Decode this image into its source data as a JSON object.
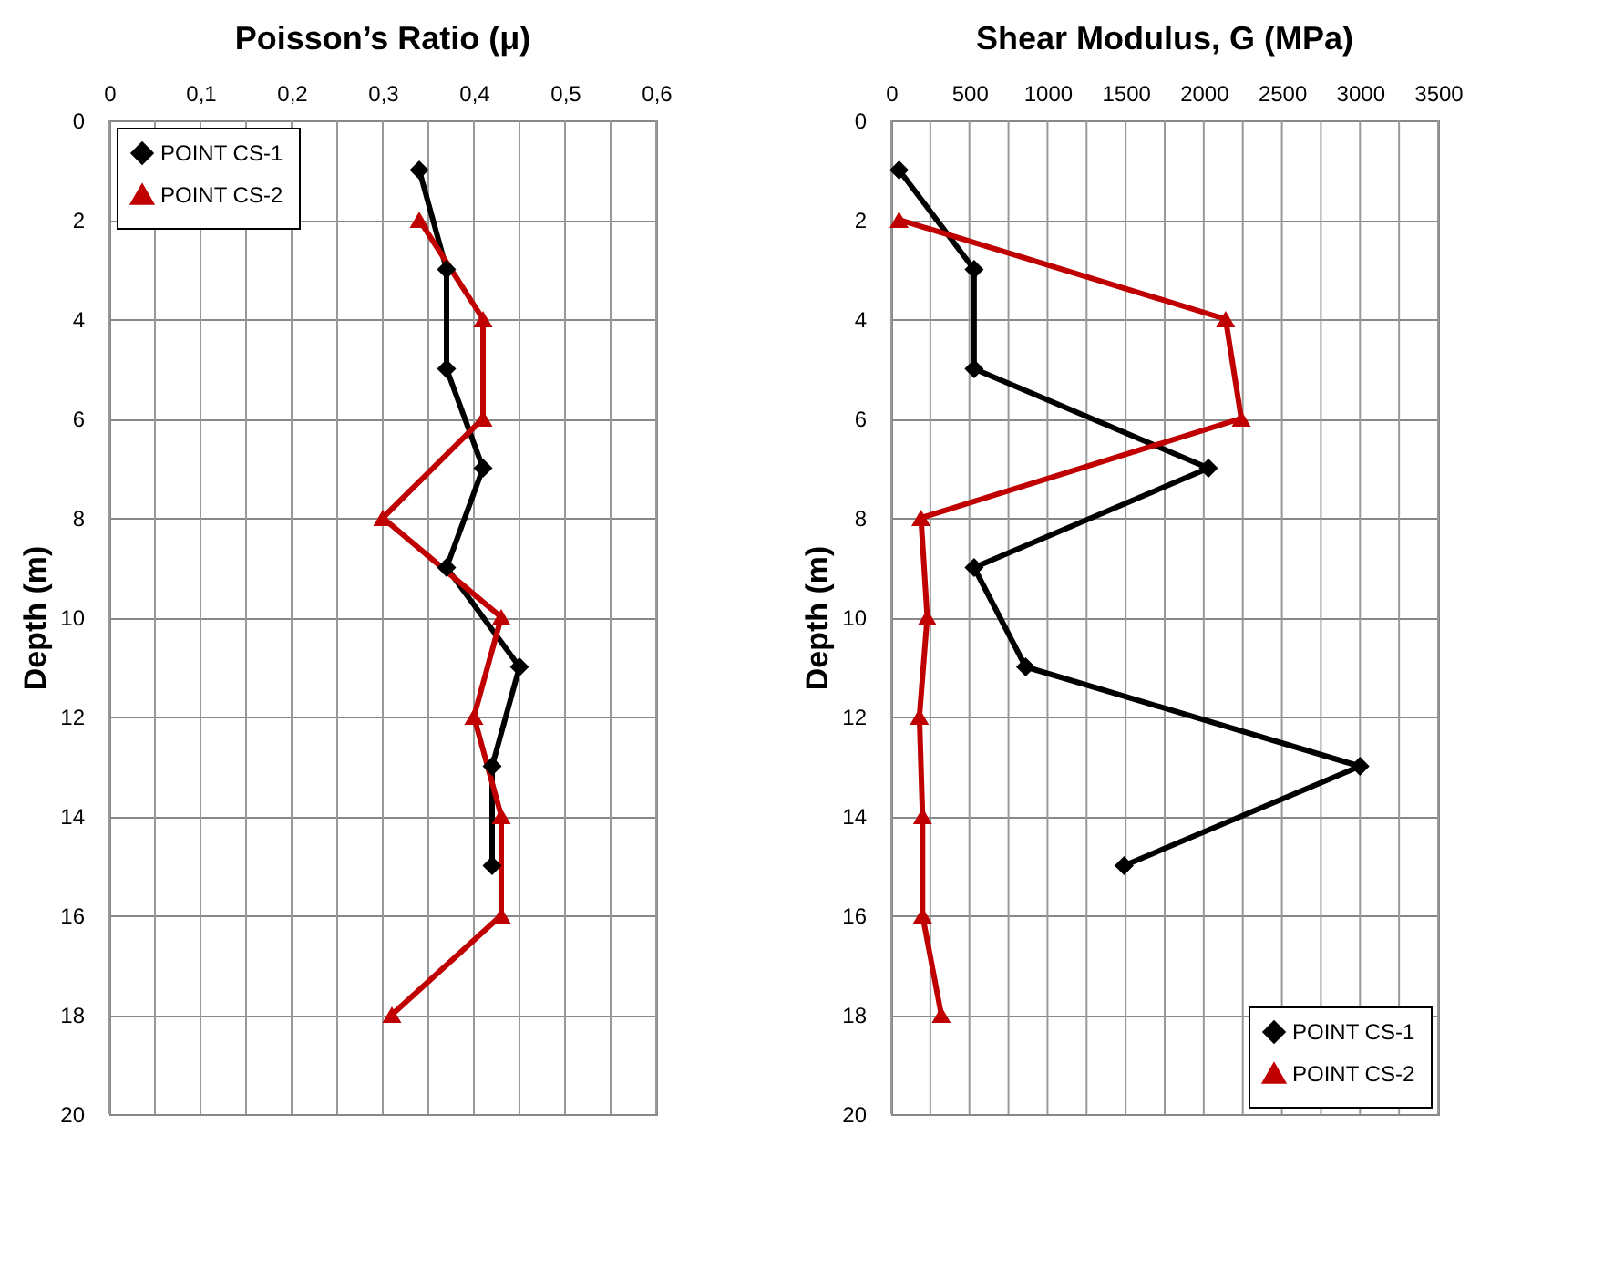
{
  "chart_data": [
    {
      "type": "line",
      "title": "Poisson’s Ratio (μ)",
      "ylabel": "Depth (m)",
      "xlim": [
        0,
        0.6
      ],
      "xticks": [
        0,
        {
          "value": 0.05,
          "label": null
        },
        {
          "value": 0.1,
          "label": "0,1"
        },
        {
          "value": 0.15,
          "label": null
        },
        {
          "value": 0.2,
          "label": "0,2"
        },
        {
          "value": 0.25,
          "label": null
        },
        {
          "value": 0.3,
          "label": "0,3"
        },
        {
          "value": 0.35,
          "label": null
        },
        {
          "value": 0.4,
          "label": "0,4"
        },
        {
          "value": 0.45,
          "label": null
        },
        {
          "value": 0.5,
          "label": "0,5"
        },
        {
          "value": 0.55,
          "label": null
        },
        {
          "value": 0.6,
          "label": "0,6"
        }
      ],
      "ylim": [
        20,
        0
      ],
      "yticks": [
        0,
        2,
        4,
        6,
        8,
        10,
        12,
        14,
        16,
        18,
        20
      ],
      "grid": true,
      "legend": "top left",
      "series": [
        {
          "name": "POINT CS-1",
          "color": "#000000",
          "marker": "diamond",
          "x": [
            0.34,
            0.37,
            0.37,
            0.41,
            0.37,
            0.45,
            0.42,
            0.42
          ],
          "values": [
            1,
            3,
            5,
            7,
            9,
            11,
            13,
            15
          ]
        },
        {
          "name": "POINT CS-2",
          "color": "#c00000",
          "marker": "triangle",
          "x": [
            0.34,
            0.41,
            0.41,
            0.3,
            0.43,
            0.4,
            0.43,
            0.43,
            0.31
          ],
          "values": [
            2,
            4,
            6,
            8,
            10,
            12,
            14,
            16,
            18
          ]
        }
      ]
    },
    {
      "type": "line",
      "title": "Shear Modulus, G (MPa)",
      "ylabel": "Depth  (m)",
      "xlim": [
        0,
        3500
      ],
      "xticks": [
        0,
        {
          "value": 250,
          "label": null
        },
        500,
        {
          "value": 750,
          "label": null
        },
        1000,
        {
          "value": 1250,
          "label": null
        },
        1500,
        {
          "value": 1750,
          "label": null
        },
        2000,
        {
          "value": 2250,
          "label": null
        },
        2500,
        {
          "value": 2750,
          "label": null
        },
        3000,
        {
          "value": 3250,
          "label": null
        },
        3500
      ],
      "ylim": [
        20,
        0
      ],
      "yticks": [
        0,
        2,
        4,
        6,
        8,
        10,
        12,
        14,
        16,
        18,
        20
      ],
      "grid": true,
      "legend": "bottom right",
      "series": [
        {
          "name": "POINT CS-1",
          "color": "#000000",
          "marker": "diamond",
          "x": [
            50,
            530,
            530,
            2030,
            530,
            860,
            3000,
            1490
          ],
          "values": [
            1,
            3,
            5,
            7,
            9,
            11,
            13,
            15
          ]
        },
        {
          "name": "POINT CS-2",
          "color": "#c00000",
          "marker": "triangle",
          "x": [
            50,
            2140,
            2240,
            190,
            230,
            180,
            200,
            200,
            320
          ],
          "values": [
            2,
            4,
            6,
            8,
            10,
            12,
            14,
            16,
            18
          ]
        }
      ]
    }
  ]
}
